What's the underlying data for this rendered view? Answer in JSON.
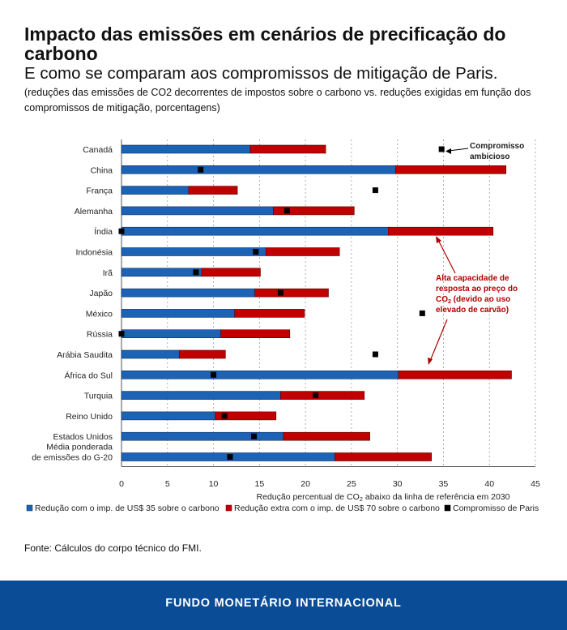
{
  "header": {
    "title": "Impacto das emissões em cenários de precificação do carbono",
    "subtitle": "E como se comparam aos compromissos de mitigação de Paris.",
    "note": "(reduções das emissões de CO2 decorrentes de impostos sobre o carbono vs. reduções exigidas em função dos compromissos de mitigação, porcentagens)"
  },
  "colors": {
    "base": "#1c63b6",
    "extra": "#c00000",
    "paris": "#000000",
    "annotation": "#b00000"
  },
  "chart_data": {
    "type": "bar",
    "orientation": "horizontal",
    "stacked": true,
    "xlabel_prefix": "Redução percentual de CO",
    "xlabel_sub": "2",
    "xlabel_suffix": " abaixo da linha de referência em 2030",
    "xlim": [
      0,
      45
    ],
    "xticks": [
      "0",
      "5",
      "10",
      "15",
      "20",
      "25",
      "30",
      "35",
      "40",
      "45"
    ],
    "categories": [
      [
        "Canadá"
      ],
      [
        "China"
      ],
      [
        "França"
      ],
      [
        "Alemanha"
      ],
      [
        "Índia"
      ],
      [
        "Indonésia"
      ],
      [
        "Irã"
      ],
      [
        "Japão"
      ],
      [
        "México"
      ],
      [
        "Rússia"
      ],
      [
        "Arábia Saudita"
      ],
      [
        "África do Sul"
      ],
      [
        "Turquia"
      ],
      [
        "Reino Unido"
      ],
      [
        "Estados Unidos"
      ],
      [
        "Média ponderada",
        "de emissões do G-20"
      ]
    ],
    "series": [
      {
        "name": "Redução com o imp. de US$ 35 sobre o carbono",
        "values": [
          14.0,
          29.8,
          7.3,
          16.5,
          29.0,
          15.7,
          8.7,
          14.5,
          12.3,
          10.8,
          6.3,
          30.1,
          17.3,
          10.2,
          17.6,
          23.2
        ]
      },
      {
        "name": "Redução extra com o imp. de US$ 70 sobre o carbono",
        "values": [
          8.2,
          12.0,
          5.3,
          8.8,
          11.4,
          8.0,
          6.4,
          8.0,
          7.6,
          7.5,
          5.0,
          12.3,
          9.1,
          6.6,
          9.4,
          10.5
        ]
      }
    ],
    "paris_commitment": {
      "name": "Compromisso de Paris",
      "values": [
        34.8,
        8.6,
        27.6,
        18.0,
        0.0,
        14.6,
        8.1,
        17.3,
        32.7,
        0.0,
        27.6,
        10.0,
        21.1,
        11.2,
        14.4,
        11.8
      ]
    },
    "annotations": {
      "ambitious": [
        "Compromisso",
        "ambicioso"
      ],
      "high_response": [
        "Alta capacidade de",
        "resposta ao preço do",
        "CO2 (devido ao uso",
        "elevado de carvão)"
      ]
    }
  },
  "source": "Fonte: Cálculos do corpo técnico do FMI.",
  "footer": "FUNDO MONETÁRIO INTERNACIONAL"
}
